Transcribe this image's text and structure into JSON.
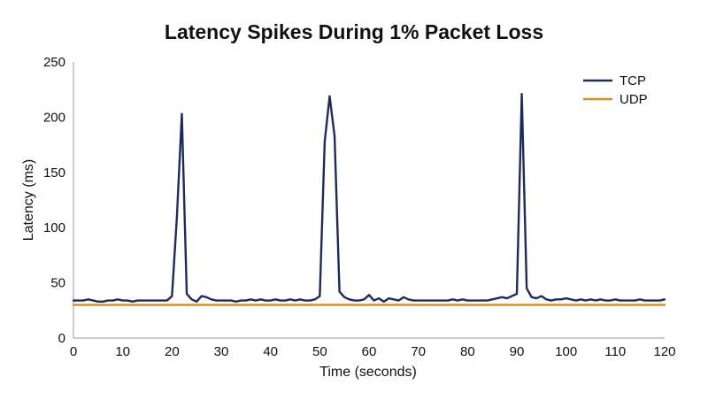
{
  "chart_data": {
    "type": "line",
    "title": "Latency Spikes During 1% Packet Loss",
    "xlabel": "Time (seconds)",
    "ylabel": "Latency (ms)",
    "xlim": [
      0,
      120
    ],
    "ylim": [
      0,
      250
    ],
    "x_ticks": [
      0,
      10,
      20,
      30,
      40,
      50,
      60,
      70,
      80,
      90,
      100,
      110,
      120
    ],
    "y_ticks": [
      0,
      50,
      100,
      150,
      200,
      250
    ],
    "grid": false,
    "legend_position": "top-right",
    "series": [
      {
        "name": "TCP",
        "color": "#1f2a5c",
        "x": [
          0,
          1,
          2,
          3,
          4,
          5,
          6,
          7,
          8,
          9,
          10,
          11,
          12,
          13,
          14,
          15,
          16,
          17,
          18,
          19,
          20,
          21,
          22,
          23,
          24,
          25,
          26,
          27,
          28,
          29,
          30,
          31,
          32,
          33,
          34,
          35,
          36,
          37,
          38,
          39,
          40,
          41,
          42,
          43,
          44,
          45,
          46,
          47,
          48,
          49,
          50,
          51,
          52,
          53,
          54,
          55,
          56,
          57,
          58,
          59,
          60,
          61,
          62,
          63,
          64,
          65,
          66,
          67,
          68,
          69,
          70,
          71,
          72,
          73,
          74,
          75,
          76,
          77,
          78,
          79,
          80,
          81,
          82,
          83,
          84,
          85,
          86,
          87,
          88,
          89,
          90,
          91,
          92,
          93,
          94,
          95,
          96,
          97,
          98,
          99,
          100,
          101,
          102,
          103,
          104,
          105,
          106,
          107,
          108,
          109,
          110,
          111,
          112,
          113,
          114,
          115,
          116,
          117,
          118,
          119,
          120
        ],
        "values": [
          34,
          34,
          34,
          35,
          34,
          33,
          33,
          34,
          34,
          35,
          34,
          34,
          33,
          34,
          34,
          34,
          34,
          34,
          34,
          34,
          38,
          110,
          203,
          40,
          35,
          33,
          38,
          37,
          35,
          34,
          34,
          34,
          34,
          33,
          34,
          34,
          35,
          34,
          35,
          34,
          34,
          35,
          34,
          34,
          35,
          34,
          35,
          34,
          34,
          35,
          38,
          178,
          219,
          183,
          42,
          37,
          35,
          34,
          34,
          35,
          39,
          34,
          36,
          33,
          36,
          35,
          34,
          37,
          35,
          34,
          34,
          34,
          34,
          34,
          34,
          34,
          34,
          35,
          34,
          35,
          34,
          34,
          34,
          34,
          34,
          35,
          36,
          37,
          36,
          38,
          40,
          221,
          45,
          37,
          36,
          38,
          35,
          34,
          35,
          35,
          36,
          35,
          34,
          35,
          34,
          35,
          34,
          35,
          34,
          34,
          35,
          34,
          34,
          34,
          34,
          35,
          34,
          34,
          34,
          34,
          35
        ]
      },
      {
        "name": "UDP",
        "color": "#d48f22",
        "x": [
          0,
          120
        ],
        "values": [
          30,
          30
        ]
      }
    ]
  }
}
